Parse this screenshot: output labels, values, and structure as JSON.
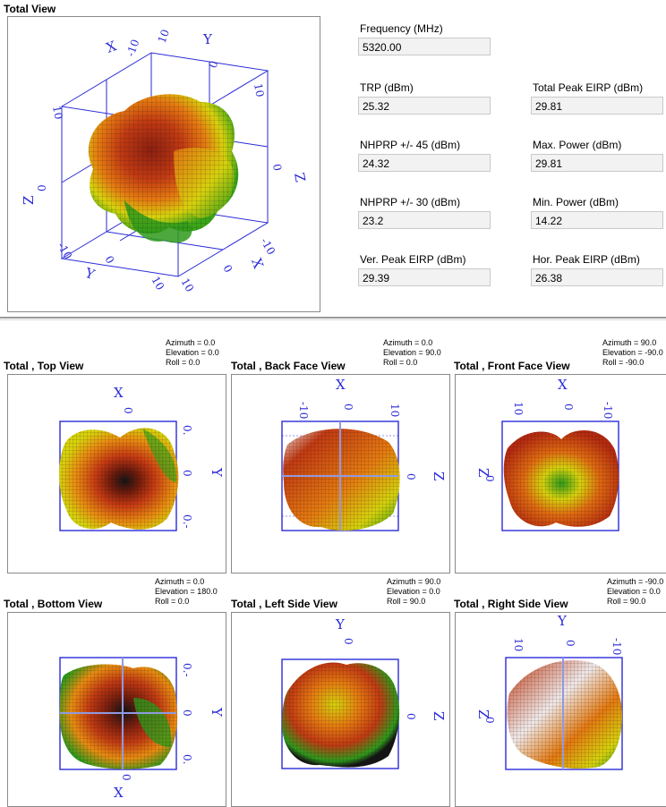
{
  "total_view": {
    "title": "Total View"
  },
  "fields": {
    "frequency": {
      "label": "Frequency (MHz)",
      "value": "5320.00"
    },
    "trp": {
      "label": "TRP (dBm)",
      "value": "25.32"
    },
    "total_peak_eirp": {
      "label": "Total Peak EIRP (dBm)",
      "value": "29.81"
    },
    "nhprp45": {
      "label": "NHPRP +/- 45 (dBm)",
      "value": "24.32"
    },
    "max_power": {
      "label": "Max. Power (dBm)",
      "value": "29.81"
    },
    "nhprp30": {
      "label": "NHPRP +/- 30 (dBm)",
      "value": "23.2"
    },
    "min_power": {
      "label": "Min. Power (dBm)",
      "value": "14.22"
    },
    "ver_peak_eirp": {
      "label": "Ver. Peak EIRP (dBm)",
      "value": "29.39"
    },
    "hor_peak_eirp": {
      "label": "Hor. Peak EIRP (dBm)",
      "value": "26.38"
    }
  },
  "views": [
    {
      "title": "Total , Top View",
      "azimuth": "Azimuth = 0.0",
      "elevation": "Elevation = 0.0",
      "roll": "Roll = 0.0",
      "axes": {
        "top": "X",
        "top_tick": "0",
        "right": "Y",
        "right_ticks": [
          "0.",
          "0",
          "0.-"
        ]
      }
    },
    {
      "title": "Total , Back Face View",
      "azimuth": "Azimuth = 0.0",
      "elevation": "Elevation = 90.0",
      "roll": "Roll = 0.0",
      "axes": {
        "top": "X",
        "top_ticks": [
          "-10",
          "0",
          "10"
        ],
        "right": "Z",
        "right_tick": "0"
      }
    },
    {
      "title": "Total , Front Face View",
      "azimuth": "Azimuth = 90.0",
      "elevation": "Elevation = -90.0",
      "roll": "Roll = -90.0",
      "axes": {
        "top": "X",
        "top_ticks": [
          "10",
          "0",
          "-10"
        ],
        "left": "Z",
        "left_tick": "0"
      }
    },
    {
      "title": "Total , Bottom View",
      "azimuth": "Azimuth = 0.0",
      "elevation": "Elevation = 180.0",
      "roll": "Roll = 0.0",
      "axes": {
        "bottom": "X",
        "bottom_tick": "0",
        "right": "Y",
        "right_ticks": [
          "0.-",
          "0",
          "0."
        ]
      }
    },
    {
      "title": "Total , Left Side View",
      "azimuth": "Azimuth = 90.0",
      "elevation": "Elevation = 0.0",
      "roll": "Roll = 90.0",
      "axes": {
        "top": "Y",
        "top_tick": "0",
        "right": "Z",
        "right_tick": "0"
      }
    },
    {
      "title": "Total , Right Side View",
      "azimuth": "Azimuth = -90.0",
      "elevation": "Elevation = 0.0",
      "roll": "Roll = 90.0",
      "axes": {
        "top": "Y",
        "top_ticks": [
          "10",
          "0",
          "-10"
        ],
        "left": "Z",
        "left_tick": "0"
      }
    }
  ],
  "total_view_axes": {
    "x_top": "X",
    "y_top": "Y",
    "z_right": "Z",
    "z_left": "Z",
    "ticks_top": [
      "-10",
      "10",
      "0"
    ],
    "ticks_right": [
      "10",
      "0"
    ],
    "ticks_left": [
      "10",
      "0"
    ],
    "ticks_bottom": [
      "-10",
      "0",
      "10",
      "-10",
      "0",
      "10"
    ],
    "x_bottom": "X",
    "y_bottom": "Y"
  },
  "colors": {
    "axis": "#2a2ad8",
    "field_bg": "#f2f2f2",
    "field_border": "#c9c9c9"
  }
}
